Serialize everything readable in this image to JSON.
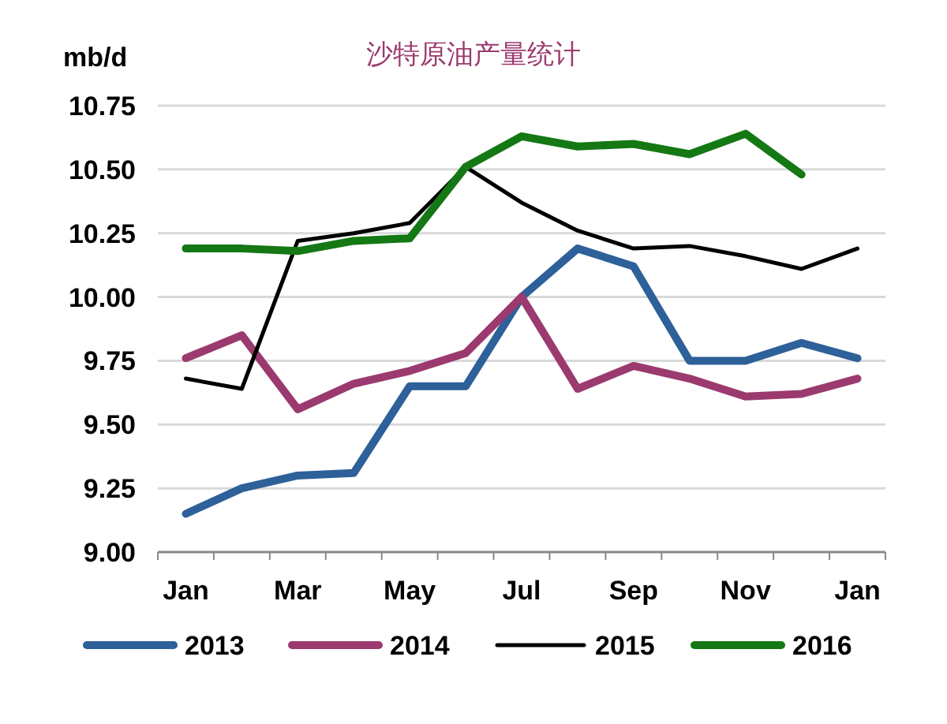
{
  "chart_data": {
    "type": "line",
    "title": "沙特原油产量统计",
    "ylabel": "mb/d",
    "categories": [
      "Jan",
      null,
      "Mar",
      null,
      "May",
      null,
      "Jul",
      null,
      "Sep",
      null,
      "Nov",
      null,
      "Jan"
    ],
    "ylim": [
      9,
      10.75
    ],
    "yticks": [
      {
        "value": 9,
        "label": "9.00"
      },
      {
        "value": 9.25,
        "label": "9.25"
      },
      {
        "value": 9.5,
        "label": "9.50"
      },
      {
        "value": 9.75,
        "label": "9.75"
      },
      {
        "value": 10,
        "label": "10.00"
      },
      {
        "value": 10.25,
        "label": "10.25"
      },
      {
        "value": 10.5,
        "label": "10.50"
      },
      {
        "value": 10.75,
        "label": "10.75"
      }
    ],
    "grid": "y",
    "legend": "bottom",
    "series": [
      {
        "name": "2013",
        "color": "#2e6099",
        "values": [
          9.15,
          9.25,
          9.3,
          9.31,
          9.65,
          9.65,
          10.0,
          10.19,
          10.12,
          9.75,
          9.75,
          9.82,
          9.76
        ]
      },
      {
        "name": "2014",
        "color": "#9b3a6e",
        "values": [
          9.76,
          9.85,
          9.56,
          9.66,
          9.71,
          9.78,
          10.0,
          9.64,
          9.73,
          9.68,
          9.61,
          9.62,
          9.68
        ]
      },
      {
        "name": "2015",
        "color": "#000000",
        "values": [
          9.68,
          9.64,
          10.22,
          10.25,
          10.29,
          10.51,
          10.37,
          10.26,
          10.19,
          10.2,
          10.16,
          10.11,
          10.19
        ]
      },
      {
        "name": "2016",
        "color": "#147814",
        "values": [
          10.19,
          10.19,
          10.18,
          10.22,
          10.23,
          10.51,
          10.63,
          10.59,
          10.6,
          10.56,
          10.64,
          10.48,
          null
        ]
      }
    ]
  }
}
